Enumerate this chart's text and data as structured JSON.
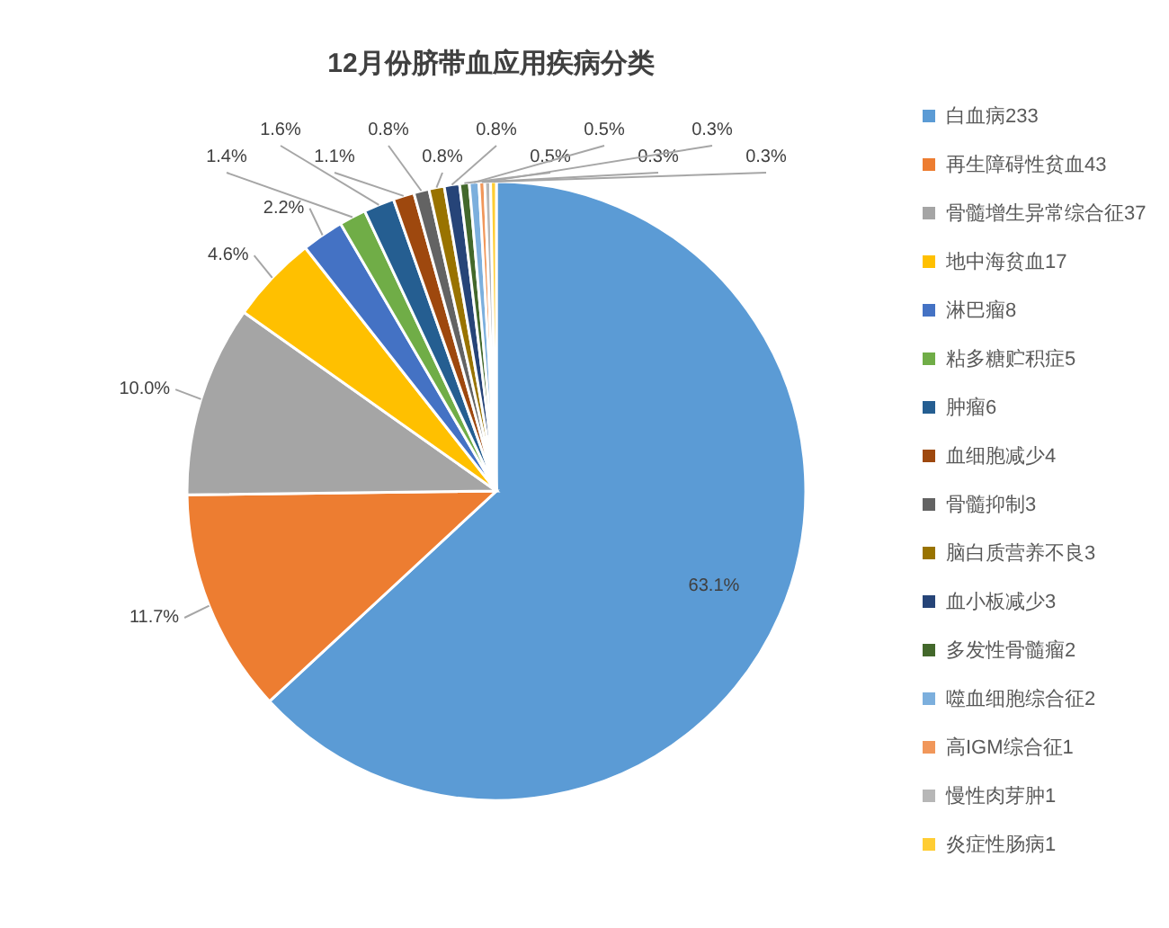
{
  "chart_data": {
    "type": "pie",
    "title": "12月份脐带血应用疾病分类",
    "categories": [
      "白血病233",
      "再生障碍性贫血43",
      "骨髓增生异常综合征37",
      "地中海贫血17",
      "淋巴瘤8",
      "粘多糖贮积症5",
      "肿瘤6",
      "血细胞减少4",
      "骨髓抑制3",
      "脑白质营养不良3",
      "血小板减少3",
      "多发性骨髓瘤2",
      "噬血细胞综合征2",
      "高IGM综合征1",
      "慢性肉芽肿1",
      "炎症性肠病1"
    ],
    "values": [
      63.1,
      11.7,
      10.0,
      4.6,
      2.2,
      1.4,
      1.6,
      1.1,
      0.8,
      0.8,
      0.8,
      0.5,
      0.5,
      0.3,
      0.3,
      0.3
    ],
    "colors": [
      "#5b9bd5",
      "#ed7d31",
      "#a5a5a5",
      "#ffc000",
      "#4472c4",
      "#70ad47",
      "#255e91",
      "#9e480e",
      "#636363",
      "#997300",
      "#264478",
      "#43682b",
      "#7cafdd",
      "#f1975a",
      "#b7b7b7",
      "#ffcd33"
    ],
    "value_labels": [
      "63.1%",
      "11.7%",
      "10.0%",
      "4.6%",
      "2.2%",
      "1.4%",
      "1.6%",
      "1.1%",
      "0.8%",
      "0.8%",
      "0.8%",
      "0.5%",
      "0.5%",
      "0.3%",
      "0.3%",
      "0.3%"
    ],
    "legend": "right"
  }
}
